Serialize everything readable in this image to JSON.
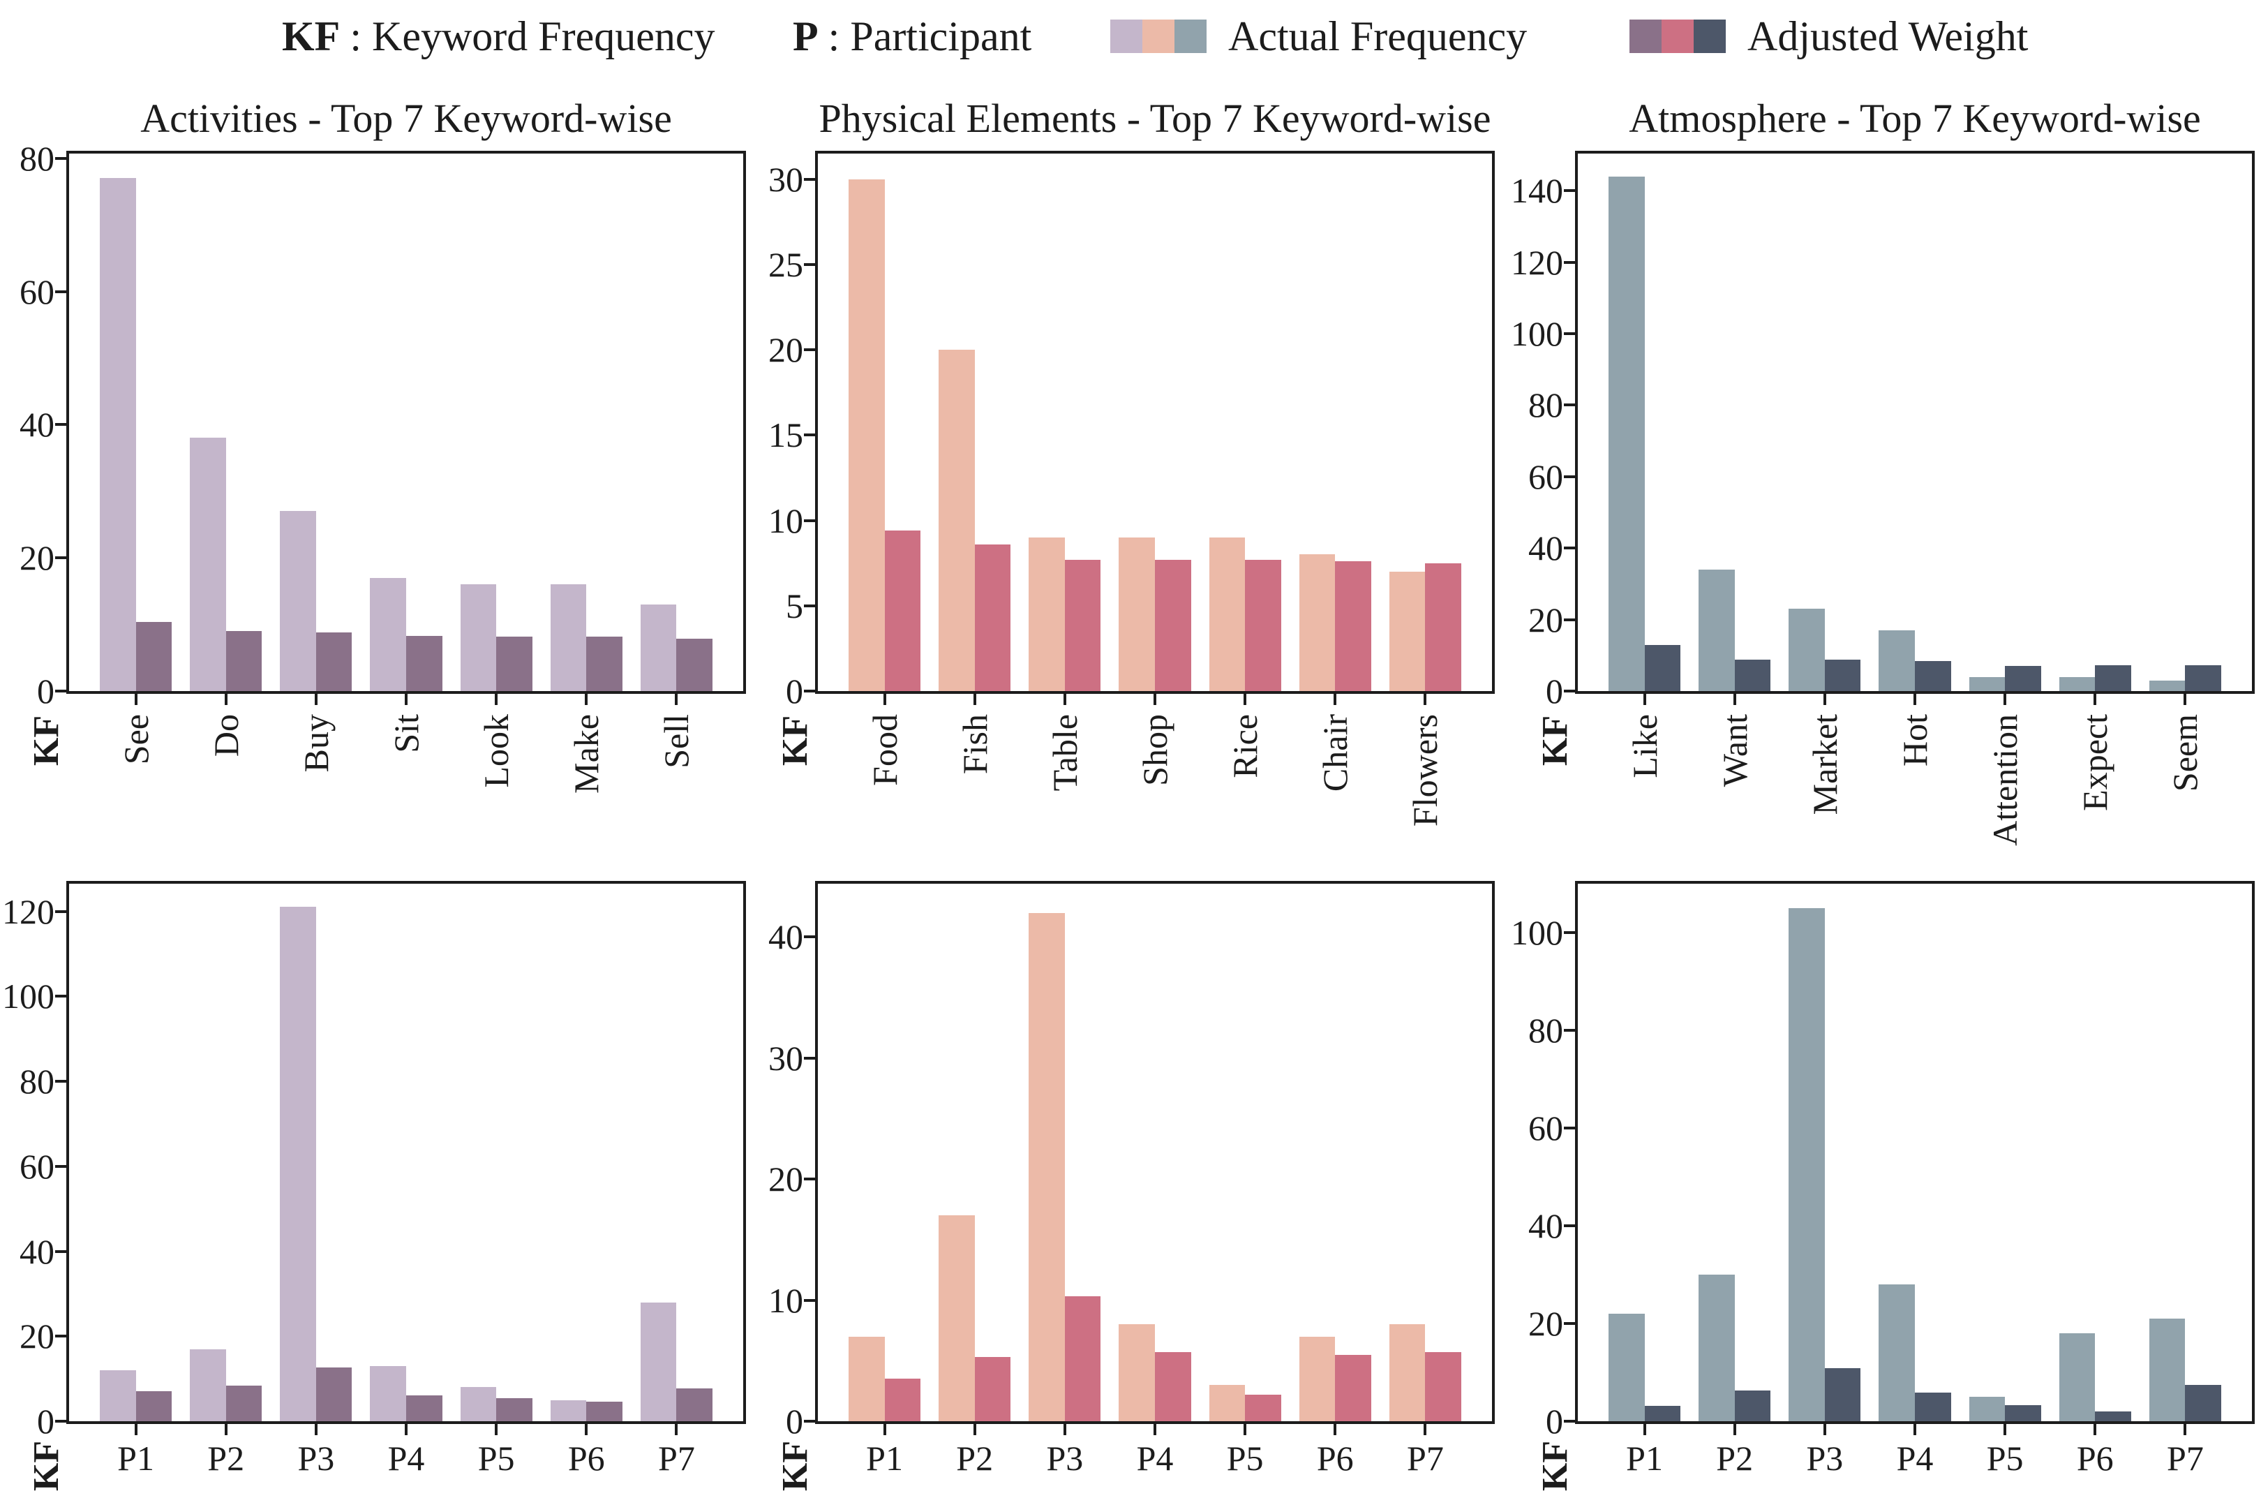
{
  "legend": {
    "items": [
      {
        "abbr": "KF",
        "text": ": Keyword Frequency"
      },
      {
        "abbr": "P",
        "text": ": Participant"
      },
      {
        "label": "Actual Frequency",
        "colors": [
          "#c4b6cb",
          "#ecbaa8",
          "#91a3ac"
        ]
      },
      {
        "label": "Adjusted Weight",
        "colors": [
          "#8a7189",
          "#cd7083",
          "#4d5769"
        ]
      }
    ]
  },
  "chart_data": [
    {
      "type": "bar",
      "title": "Activities - Top 7 Keyword-wise",
      "row": 0,
      "col": 0,
      "ylabel": "KF",
      "categories": [
        "See",
        "Do",
        "Buy",
        "Sit",
        "Look",
        "Make",
        "Sell"
      ],
      "yticks": [
        0,
        20,
        40,
        60,
        80
      ],
      "ylim": [
        0,
        80.7
      ],
      "xtick_rotation": 90,
      "grid": false,
      "series": [
        {
          "name": "Actual Frequency",
          "color": "#c4b6cb",
          "values": [
            77,
            38,
            27,
            17,
            16,
            16,
            13
          ]
        },
        {
          "name": "Adjusted Weight",
          "color": "#8a7189",
          "values": [
            10.4,
            9.0,
            8.8,
            8.3,
            8.2,
            8.2,
            7.9
          ]
        }
      ]
    },
    {
      "type": "bar",
      "title": "Physical Elements - Top 7 Keyword-wise",
      "row": 0,
      "col": 1,
      "ylabel": "KF",
      "categories": [
        "Food",
        "Fish",
        "Table",
        "Shop",
        "Rice",
        "Chair",
        "Flowers"
      ],
      "yticks": [
        0,
        5,
        10,
        15,
        20,
        25,
        30
      ],
      "ylim": [
        0,
        31.5
      ],
      "xtick_rotation": 90,
      "grid": false,
      "series": [
        {
          "name": "Actual Frequency",
          "color": "#ecbaa8",
          "values": [
            30,
            20,
            9,
            9,
            9,
            8,
            7
          ]
        },
        {
          "name": "Adjusted Weight",
          "color": "#cd7083",
          "values": [
            9.4,
            8.6,
            7.7,
            7.7,
            7.7,
            7.6,
            7.5
          ]
        }
      ]
    },
    {
      "type": "bar",
      "title": "Atmosphere - Top 7 Keyword-wise",
      "row": 0,
      "col": 2,
      "ylabel": "KF",
      "categories": [
        "Like",
        "Want",
        "Market",
        "Hot",
        "Attention",
        "Expect",
        "Seem"
      ],
      "yticks": [
        0,
        20,
        40,
        60,
        80,
        100,
        120,
        140
      ],
      "ylim": [
        0,
        150.4
      ],
      "xtick_rotation": 90,
      "grid": false,
      "series": [
        {
          "name": "Actual Frequency",
          "color": "#91a3ac",
          "values": [
            144,
            34,
            23,
            17,
            4,
            4,
            3
          ]
        },
        {
          "name": "Adjusted Weight",
          "color": "#4d5769",
          "values": [
            12.8,
            8.8,
            8.8,
            8.4,
            7.1,
            7.3,
            7.3
          ]
        }
      ]
    },
    {
      "type": "bar",
      "title": "",
      "row": 1,
      "col": 0,
      "ylabel": "KF",
      "categories": [
        "P1",
        "P2",
        "P3",
        "P4",
        "P5",
        "P6",
        "P7"
      ],
      "yticks": [
        0,
        20,
        40,
        60,
        80,
        100,
        120
      ],
      "ylim": [
        0,
        126.5
      ],
      "xtick_rotation": 0,
      "grid": false,
      "series": [
        {
          "name": "Actual Frequency",
          "color": "#c4b6cb",
          "values": [
            12,
            17,
            121,
            13,
            8,
            5,
            28
          ]
        },
        {
          "name": "Adjusted Weight",
          "color": "#8a7189",
          "values": [
            7.0,
            8.3,
            12.6,
            6.1,
            5.5,
            4.6,
            7.8
          ]
        }
      ]
    },
    {
      "type": "bar",
      "title": "",
      "row": 1,
      "col": 1,
      "ylabel": "KF",
      "categories": [
        "P1",
        "P2",
        "P3",
        "P4",
        "P5",
        "P6",
        "P7"
      ],
      "yticks": [
        0,
        10,
        20,
        30,
        40
      ],
      "ylim": [
        0,
        44.4
      ],
      "xtick_rotation": 0,
      "grid": false,
      "series": [
        {
          "name": "Actual Frequency",
          "color": "#ecbaa8",
          "values": [
            7,
            17,
            42,
            8,
            3,
            7,
            8
          ]
        },
        {
          "name": "Adjusted Weight",
          "color": "#cd7083",
          "values": [
            3.5,
            5.3,
            10.3,
            5.7,
            2.2,
            5.5,
            5.7
          ]
        }
      ]
    },
    {
      "type": "bar",
      "title": "",
      "row": 1,
      "col": 2,
      "ylabel": "KF",
      "categories": [
        "P1",
        "P2",
        "P3",
        "P4",
        "P5",
        "P6",
        "P7"
      ],
      "yticks": [
        0,
        20,
        40,
        60,
        80,
        100
      ],
      "ylim": [
        0,
        110
      ],
      "xtick_rotation": 0,
      "grid": false,
      "series": [
        {
          "name": "Actual Frequency",
          "color": "#91a3ac",
          "values": [
            22,
            30,
            105,
            28,
            5,
            18,
            21
          ]
        },
        {
          "name": "Adjusted Weight",
          "color": "#4d5769",
          "values": [
            3.1,
            6.3,
            10.8,
            5.9,
            3.3,
            2.0,
            7.4
          ]
        }
      ]
    }
  ]
}
